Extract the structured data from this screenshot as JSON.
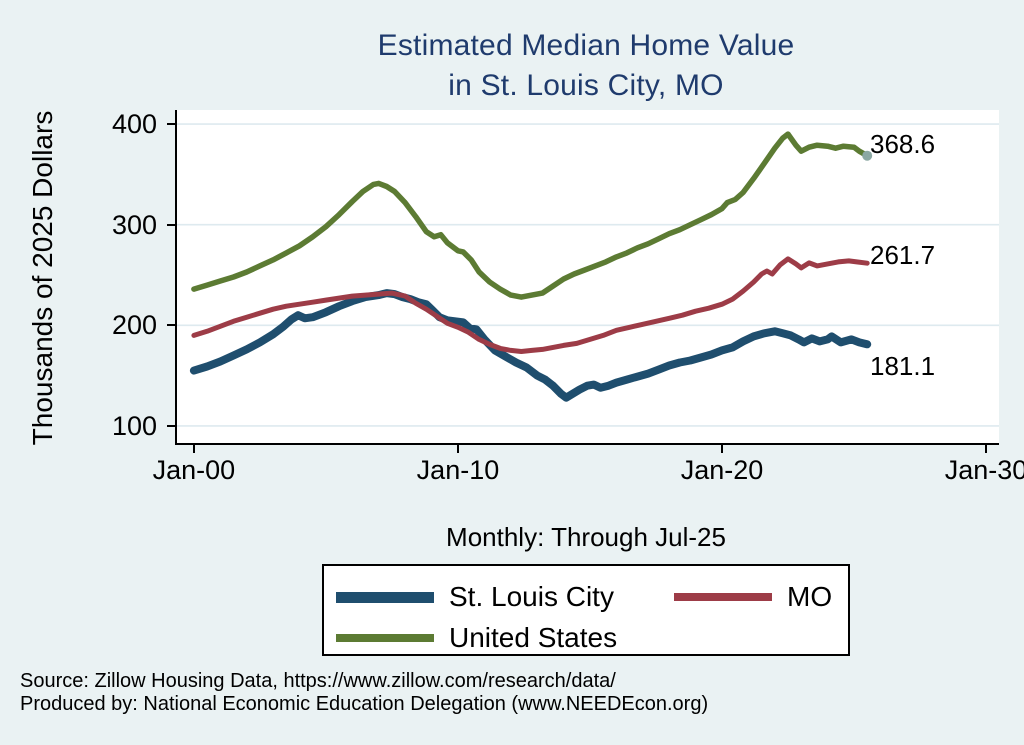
{
  "title": {
    "line1": "Estimated Median Home Value",
    "line2": "in St. Louis City, MO"
  },
  "subtitle": "Monthly: Through Jul-25",
  "y_axis": {
    "label": "Thousands of 2025 Dollars",
    "ticks": [
      100,
      200,
      300,
      400
    ]
  },
  "x_axis": {
    "ticks": [
      {
        "t": 2000,
        "label": "Jan-00"
      },
      {
        "t": 2010,
        "label": "Jan-10"
      },
      {
        "t": 2020,
        "label": "Jan-20"
      },
      {
        "t": 2030,
        "label": "Jan-30"
      }
    ]
  },
  "legend": {
    "items": [
      {
        "label": "St. Louis City"
      },
      {
        "label": "MO"
      },
      {
        "label": "United States"
      }
    ]
  },
  "source": {
    "line1": "Source: Zillow Housing Data, https://www.zillow.com/research/data/",
    "line2": "Produced by: National Economic Education Delegation (www.NEEDEcon.org)"
  },
  "colors": {
    "background": "#EAF2F3",
    "plot_background": "#FFFFFF",
    "gridline": "#DEEAEF",
    "title": "#1F3B6D",
    "axis_text": "#000000"
  },
  "chart_data": {
    "type": "line",
    "title": "Estimated Median Home Value in St. Louis City, MO",
    "xlabel": "Monthly: Through Jul-25",
    "ylabel": "Thousands of 2025 Dollars",
    "xlim": [
      1999.36,
      2030.49
    ],
    "ylim": [
      83,
      414
    ],
    "grid": true,
    "legend_position": "bottom",
    "series": [
      {
        "name": "St. Louis City",
        "color": "#1F4E6E",
        "width": 8,
        "end_label": "181.1",
        "end_value": 181.1,
        "label_dy": 22,
        "points": [
          [
            2000,
            155
          ],
          [
            2000.5,
            159
          ],
          [
            2001,
            164
          ],
          [
            2001.5,
            170
          ],
          [
            2002,
            176
          ],
          [
            2002.5,
            183
          ],
          [
            2003,
            191
          ],
          [
            2003.4,
            199
          ],
          [
            2003.7,
            206
          ],
          [
            2003.95,
            210
          ],
          [
            2004.2,
            207
          ],
          [
            2004.5,
            208
          ],
          [
            2005,
            213
          ],
          [
            2005.5,
            219
          ],
          [
            2006,
            224
          ],
          [
            2006.5,
            228
          ],
          [
            2007,
            230
          ],
          [
            2007.3,
            232
          ],
          [
            2007.6,
            231
          ],
          [
            2007.9,
            228
          ],
          [
            2008.2,
            226
          ],
          [
            2008.5,
            223
          ],
          [
            2008.8,
            221
          ],
          [
            2009,
            216
          ],
          [
            2009.3,
            208
          ],
          [
            2009.6,
            205
          ],
          [
            2009.9,
            204
          ],
          [
            2010.2,
            203
          ],
          [
            2010.45,
            197
          ],
          [
            2010.7,
            196
          ],
          [
            2011,
            186
          ],
          [
            2011.4,
            175
          ],
          [
            2011.8,
            169
          ],
          [
            2012.2,
            163
          ],
          [
            2012.6,
            158
          ],
          [
            2013,
            150
          ],
          [
            2013.3,
            146
          ],
          [
            2013.6,
            140
          ],
          [
            2013.9,
            132
          ],
          [
            2014.1,
            128
          ],
          [
            2014.35,
            132
          ],
          [
            2014.6,
            136
          ],
          [
            2014.9,
            140
          ],
          [
            2015.15,
            141
          ],
          [
            2015.4,
            138
          ],
          [
            2015.7,
            140
          ],
          [
            2016,
            143
          ],
          [
            2016.4,
            146
          ],
          [
            2016.8,
            149
          ],
          [
            2017.2,
            152
          ],
          [
            2017.6,
            156
          ],
          [
            2018,
            160
          ],
          [
            2018.4,
            163
          ],
          [
            2018.8,
            165
          ],
          [
            2019.2,
            168
          ],
          [
            2019.6,
            171
          ],
          [
            2020,
            175
          ],
          [
            2020.4,
            178
          ],
          [
            2020.8,
            184
          ],
          [
            2021.2,
            189
          ],
          [
            2021.6,
            192
          ],
          [
            2022,
            194
          ],
          [
            2022.3,
            192
          ],
          [
            2022.6,
            190
          ],
          [
            2022.9,
            186
          ],
          [
            2023.1,
            183
          ],
          [
            2023.4,
            187
          ],
          [
            2023.7,
            184
          ],
          [
            2024,
            186
          ],
          [
            2024.15,
            189
          ],
          [
            2024.5,
            183
          ],
          [
            2024.9,
            186
          ],
          [
            2025.2,
            183
          ],
          [
            2025.5,
            181.1
          ]
        ]
      },
      {
        "name": "MO",
        "color": "#9D3C47",
        "width": 5,
        "end_label": "261.7",
        "end_value": 261.7,
        "label_dy": -8,
        "points": [
          [
            2000,
            190
          ],
          [
            2000.5,
            194
          ],
          [
            2001,
            199
          ],
          [
            2001.5,
            204
          ],
          [
            2002,
            208
          ],
          [
            2002.5,
            212
          ],
          [
            2003,
            216
          ],
          [
            2003.5,
            219
          ],
          [
            2004,
            221
          ],
          [
            2004.5,
            223
          ],
          [
            2005,
            225
          ],
          [
            2005.5,
            227
          ],
          [
            2006,
            229
          ],
          [
            2006.5,
            230
          ],
          [
            2007,
            231
          ],
          [
            2007.5,
            232
          ],
          [
            2008,
            229
          ],
          [
            2008.4,
            222
          ],
          [
            2008.8,
            216
          ],
          [
            2009.2,
            209
          ],
          [
            2009.6,
            202
          ],
          [
            2010,
            198
          ],
          [
            2010.4,
            193
          ],
          [
            2010.8,
            186
          ],
          [
            2011.2,
            181
          ],
          [
            2011.6,
            177
          ],
          [
            2012,
            175
          ],
          [
            2012.4,
            174
          ],
          [
            2012.8,
            175
          ],
          [
            2013.2,
            176
          ],
          [
            2013.6,
            178
          ],
          [
            2014,
            180
          ],
          [
            2014.5,
            182
          ],
          [
            2015,
            186
          ],
          [
            2015.5,
            190
          ],
          [
            2016,
            195
          ],
          [
            2016.5,
            198
          ],
          [
            2017,
            201
          ],
          [
            2017.5,
            204
          ],
          [
            2018,
            207
          ],
          [
            2018.5,
            210
          ],
          [
            2019,
            214
          ],
          [
            2019.5,
            217
          ],
          [
            2020,
            221
          ],
          [
            2020.4,
            226
          ],
          [
            2020.8,
            234
          ],
          [
            2021.2,
            243
          ],
          [
            2021.5,
            251
          ],
          [
            2021.7,
            254
          ],
          [
            2021.9,
            251
          ],
          [
            2022.2,
            260
          ],
          [
            2022.5,
            266
          ],
          [
            2022.8,
            261
          ],
          [
            2023,
            257
          ],
          [
            2023.3,
            262
          ],
          [
            2023.6,
            259
          ],
          [
            2024,
            261
          ],
          [
            2024.4,
            263
          ],
          [
            2024.8,
            264
          ],
          [
            2025.1,
            263
          ],
          [
            2025.5,
            261.7
          ]
        ]
      },
      {
        "name": "United States",
        "color": "#5C7B33",
        "width": 5.5,
        "end_label": "368.6",
        "end_value": 368.6,
        "label_dy": -12,
        "end_marker": {
          "color": "#8BA8A3",
          "radius": 5
        },
        "points": [
          [
            2000,
            236
          ],
          [
            2000.5,
            240
          ],
          [
            2001,
            244
          ],
          [
            2001.5,
            248
          ],
          [
            2002,
            253
          ],
          [
            2002.5,
            259
          ],
          [
            2003,
            265
          ],
          [
            2003.5,
            272
          ],
          [
            2004,
            279
          ],
          [
            2004.5,
            288
          ],
          [
            2005,
            298
          ],
          [
            2005.5,
            310
          ],
          [
            2006,
            323
          ],
          [
            2006.4,
            333
          ],
          [
            2006.8,
            340
          ],
          [
            2007,
            341
          ],
          [
            2007.3,
            338
          ],
          [
            2007.6,
            333
          ],
          [
            2008,
            322
          ],
          [
            2008.4,
            308
          ],
          [
            2008.8,
            293
          ],
          [
            2009.1,
            288
          ],
          [
            2009.35,
            290
          ],
          [
            2009.6,
            282
          ],
          [
            2010,
            274
          ],
          [
            2010.2,
            273
          ],
          [
            2010.5,
            265
          ],
          [
            2010.8,
            253
          ],
          [
            2011.2,
            243
          ],
          [
            2011.6,
            236
          ],
          [
            2012,
            230
          ],
          [
            2012.4,
            228
          ],
          [
            2012.8,
            230
          ],
          [
            2013.2,
            232
          ],
          [
            2013.6,
            239
          ],
          [
            2014,
            246
          ],
          [
            2014.4,
            251
          ],
          [
            2014.8,
            255
          ],
          [
            2015.2,
            259
          ],
          [
            2015.6,
            263
          ],
          [
            2016,
            268
          ],
          [
            2016.4,
            272
          ],
          [
            2016.8,
            277
          ],
          [
            2017.2,
            281
          ],
          [
            2017.6,
            286
          ],
          [
            2018,
            291
          ],
          [
            2018.4,
            295
          ],
          [
            2018.8,
            300
          ],
          [
            2019.2,
            305
          ],
          [
            2019.6,
            310
          ],
          [
            2020,
            316
          ],
          [
            2020.2,
            322
          ],
          [
            2020.5,
            325
          ],
          [
            2020.8,
            332
          ],
          [
            2021.2,
            346
          ],
          [
            2021.6,
            361
          ],
          [
            2022,
            376
          ],
          [
            2022.3,
            386
          ],
          [
            2022.5,
            390
          ],
          [
            2022.8,
            379
          ],
          [
            2023,
            373
          ],
          [
            2023.3,
            377
          ],
          [
            2023.6,
            379
          ],
          [
            2024,
            378
          ],
          [
            2024.3,
            376
          ],
          [
            2024.6,
            378
          ],
          [
            2025,
            377
          ],
          [
            2025.2,
            373
          ],
          [
            2025.5,
            368.6
          ]
        ]
      }
    ]
  }
}
